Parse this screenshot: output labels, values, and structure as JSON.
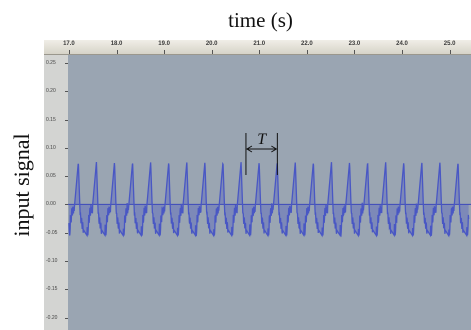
{
  "figure": {
    "title": "time (s)",
    "ylabel": "input signal",
    "period_label": "T"
  },
  "ruler": {
    "labels": [
      "17.0",
      "18.0",
      "19.0",
      "20.0",
      "21.0",
      "22.0",
      "23.0",
      "24.0",
      "25.0"
    ],
    "values": [
      17,
      18,
      19,
      20,
      21,
      22,
      23,
      24,
      25
    ]
  },
  "amplitude_axis": {
    "labels": [
      "0.25",
      "0.20",
      "0.15",
      "0.10",
      "0.05",
      "0.00",
      "-0.05",
      "-0.10",
      "-0.15",
      "-0.20"
    ],
    "values": [
      0.25,
      0.2,
      0.15,
      0.1,
      0.05,
      0.0,
      -0.05,
      -0.1,
      -0.15,
      -0.2
    ]
  },
  "signal": {
    "time_start": 17.0,
    "time_end": 25.4,
    "period": 0.38,
    "peak_amplitude": 0.075,
    "trough_amplitude": -0.055,
    "marker_time_start": 20.72,
    "marker_time_end": 21.38,
    "colors": {
      "wave": "#4957c4",
      "wave_dark": "#2e3b9e",
      "baseline": "#3b47b8",
      "background": "#9aa5b2"
    }
  }
}
